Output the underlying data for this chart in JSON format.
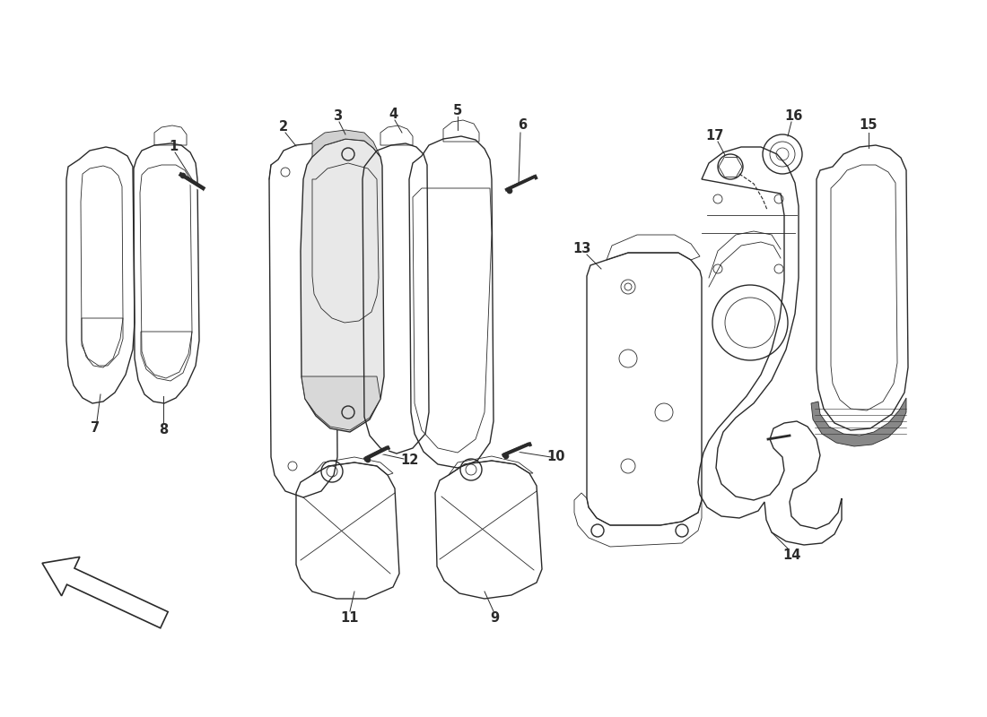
{
  "bg_color": "#ffffff",
  "lc": "#2a2a2a",
  "lc_light": "#888888",
  "fs_label": 10,
  "lw": 1.0,
  "lw_thin": 0.6
}
